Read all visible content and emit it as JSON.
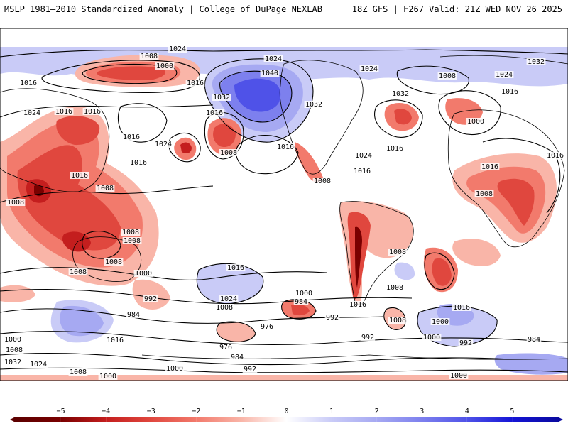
{
  "header": {
    "title_left": "MSLP 1981–2010 Standardized Anomaly | College of DuPage NEXLAB",
    "title_right": "18Z GFS | F267 Valid: 21Z WED NOV 26 2025"
  },
  "colors": {
    "neg5": "#7a0000",
    "neg4": "#c41e1e",
    "neg3": "#e0473e",
    "neg2": "#f27a6c",
    "neg1": "#f9b5a8",
    "pos1": "#c9cbf7",
    "pos2": "#a6a9f2",
    "pos3": "#7d80ee",
    "pos4": "#4f52e8",
    "pos5": "#1515d6",
    "land": "#ffffff",
    "outline": "#000000"
  },
  "legend": {
    "ticks": [
      "−5",
      "−4",
      "−3",
      "−2",
      "−1",
      "0",
      "1",
      "2",
      "3",
      "4",
      "5"
    ]
  },
  "isobar_labels": [
    "1024",
    "1008",
    "1000",
    "1024",
    "1040",
    "1024",
    "1032",
    "1008",
    "1024",
    "1032",
    "1016",
    "1016",
    "1024",
    "1016",
    "1016",
    "1016",
    "1032",
    "1032",
    "1016",
    "1024",
    "1008",
    "1016",
    "1016",
    "1016",
    "1016",
    "1016",
    "1000",
    "1016",
    "1008",
    "1008",
    "1024",
    "1008",
    "1016",
    "1016",
    "1008",
    "1008",
    "1008",
    "1008",
    "1008",
    "1008",
    "1000",
    "1016",
    "1016",
    "1000",
    "1008",
    "1008",
    "992",
    "1024",
    "1000",
    "1016",
    "984",
    "984",
    "1016",
    "1008",
    "1008",
    "1000",
    "976",
    "992",
    "992",
    "1000",
    "984",
    "992",
    "976",
    "1000",
    "984",
    "1032",
    "1024",
    "1008",
    "1000",
    "992",
    "1000"
  ]
}
